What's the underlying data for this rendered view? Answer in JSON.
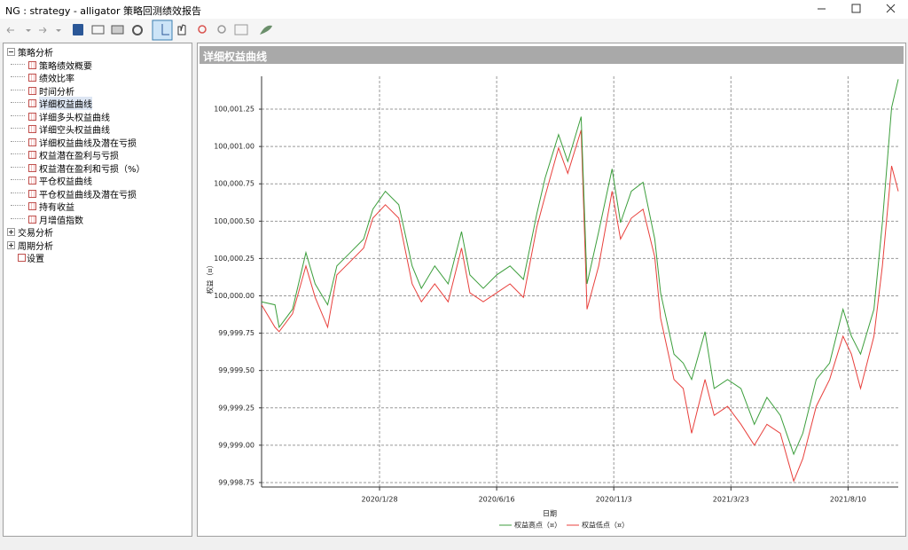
{
  "window": {
    "title": "NG : strategy - alligator 策略回测绩效报告"
  },
  "tree": [
    {
      "label": "策略分析",
      "expanded": true,
      "selected_child": 3,
      "children": [
        "策略绩效概要",
        "绩效比率",
        "时间分析",
        "详细权益曲线",
        "详细多头权益曲线",
        "详细空头权益曲线",
        "详细权益曲线及潜在亏损",
        "权益潜在盈利与亏损",
        "权益潜在盈利和亏损（%）",
        "平仓权益曲线",
        "平仓权益曲线及潜在亏损",
        "持有收益",
        "月增值指数"
      ]
    },
    {
      "label": "交易分析",
      "expanded": false,
      "children": []
    },
    {
      "label": "周期分析",
      "expanded": false,
      "children": []
    },
    {
      "label": "设置",
      "expanded": false,
      "children": []
    }
  ],
  "panel": {
    "title": "详细权益曲线"
  },
  "chart_data": {
    "type": "line",
    "ylabel": "权益（¤）",
    "xlabel": "日期",
    "x": [
      "2019/9/9",
      "2019/9/25",
      "2019/9/30",
      "2019/10/16",
      "2019/11/1",
      "2019/11/12",
      "2019/11/27",
      "2019/12/8",
      "2019/12/24",
      "2020/1/9",
      "2020/1/20",
      "2020/2/4",
      "2020/2/20",
      "2020/3/7",
      "2020/3/18",
      "2020/4/3",
      "2020/4/19",
      "2020/5/5",
      "2020/5/15",
      "2020/5/31",
      "2020/6/16",
      "2020/7/2",
      "2020/7/18",
      "2020/8/3",
      "2020/8/13",
      "2020/8/29",
      "2020/9/9",
      "2020/9/25",
      "2020/10/2",
      "2020/10/16",
      "2020/11/1",
      "2020/11/11",
      "2020/11/24",
      "2020/12/8",
      "2020/12/22",
      "2020/12/29",
      "2021/1/14",
      "2021/1/25",
      "2021/2/4",
      "2021/2/20",
      "2021/3/3",
      "2021/3/19",
      "2021/4/4",
      "2021/4/20",
      "2021/5/5",
      "2021/5/21",
      "2021/6/6",
      "2021/6/17",
      "2021/7/3",
      "2021/7/19",
      "2021/8/4",
      "2021/8/14",
      "2021/8/25",
      "2021/9/10",
      "2021/9/20",
      "2021/10/1",
      "2021/10/9"
    ],
    "series": [
      {
        "name": "权益高点（¤）",
        "color": "#3c9e3c",
        "values": [
          99999.96,
          99999.94,
          99999.79,
          99999.91,
          100000.29,
          100000.08,
          99999.94,
          100000.2,
          100000.29,
          100000.38,
          100000.58,
          100000.7,
          100000.61,
          100000.2,
          100000.05,
          100000.2,
          100000.08,
          100000.43,
          100000.14,
          100000.05,
          100000.14,
          100000.2,
          100000.11,
          100000.55,
          100000.79,
          100001.08,
          100000.9,
          100001.2,
          100000.08,
          100000.43,
          100000.85,
          100000.49,
          100000.7,
          100000.76,
          100000.38,
          100000.02,
          99999.61,
          99999.55,
          99999.44,
          99999.76,
          99999.38,
          99999.44,
          99999.38,
          99999.14,
          99999.32,
          99999.2,
          99998.94,
          99999.08,
          99999.44,
          99999.55,
          99999.91,
          99999.73,
          99999.61,
          99999.91,
          100000.49,
          100001.26,
          100001.45
        ]
      },
      {
        "name": "权益低点（¤）",
        "color": "#e8403c",
        "values": [
          99999.94,
          99999.79,
          99999.76,
          99999.88,
          100000.2,
          99999.99,
          99999.79,
          100000.14,
          100000.23,
          100000.32,
          100000.52,
          100000.61,
          100000.52,
          100000.08,
          99999.96,
          100000.08,
          99999.96,
          100000.32,
          100000.02,
          99999.96,
          100000.02,
          100000.08,
          99999.99,
          100000.46,
          100000.67,
          100000.99,
          100000.82,
          100001.11,
          99999.91,
          100000.2,
          100000.7,
          100000.38,
          100000.52,
          100000.58,
          100000.26,
          99999.85,
          99999.44,
          99999.38,
          99999.08,
          99999.44,
          99999.2,
          99999.26,
          99999.14,
          99999.0,
          99999.14,
          99999.08,
          99998.76,
          99998.91,
          99999.26,
          99999.44,
          99999.73,
          99999.61,
          99999.38,
          99999.73,
          100000.2,
          100000.87,
          100000.7
        ]
      }
    ],
    "xlim": [
      "2019/9/9",
      "2021/10/9"
    ],
    "xticks": [
      "2020/1/28",
      "2020/6/16",
      "2020/11/3",
      "2021/3/23",
      "2021/8/10"
    ],
    "ylim": [
      99998.72,
      100001.47
    ],
    "yticks": [
      {
        "value": 99998.75,
        "label": "99,998.75"
      },
      {
        "value": 99999.0,
        "label": "99,999.00"
      },
      {
        "value": 99999.25,
        "label": "99,999.25"
      },
      {
        "value": 99999.5,
        "label": "99,999.50"
      },
      {
        "value": 99999.75,
        "label": "99,999.75"
      },
      {
        "value": 100000.0,
        "label": "100,000.00"
      },
      {
        "value": 100000.25,
        "label": "100,000.25"
      },
      {
        "value": 100000.5,
        "label": "100,000.50"
      },
      {
        "value": 100000.75,
        "label": "100,000.75"
      },
      {
        "value": 100001.0,
        "label": "100,001.00"
      },
      {
        "value": 100001.25,
        "label": "100,001.25"
      }
    ],
    "grid": true,
    "legend": "bottom"
  }
}
